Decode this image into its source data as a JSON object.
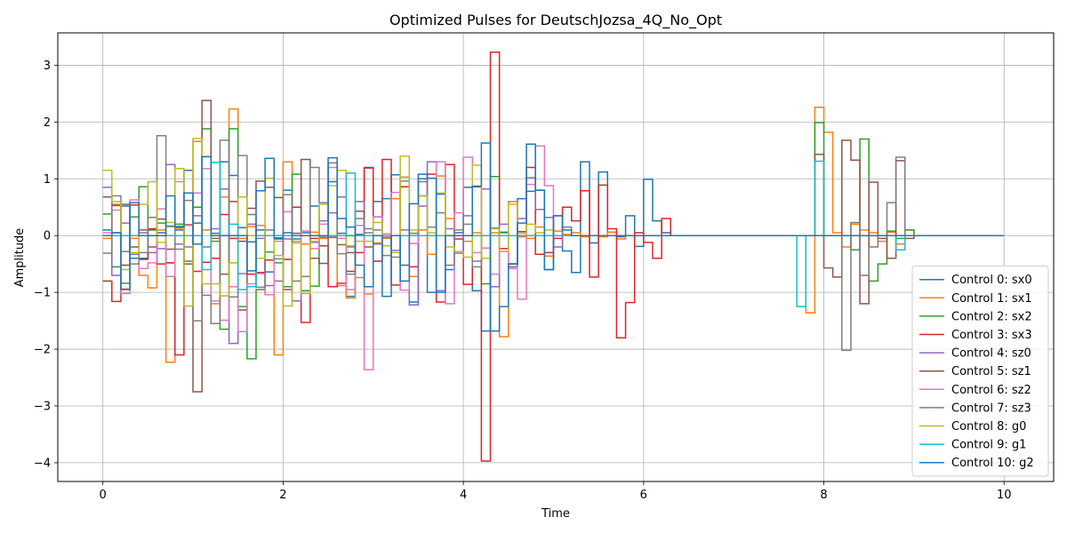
{
  "chart_data": {
    "type": "line",
    "step": true,
    "title": "Optimized Pulses for DeutschJozsa_4Q_No_Opt",
    "xlabel": "Time",
    "ylabel": "Amplitude",
    "xlim": [
      -0.5,
      10.55
    ],
    "ylim": [
      -4.33,
      3.57
    ],
    "xticks": [
      0,
      2,
      4,
      6,
      8,
      10
    ],
    "xtick_labels": [
      "0",
      "2",
      "4",
      "6",
      "8",
      "10"
    ],
    "yticks": [
      -4,
      -3,
      -2,
      -1,
      0,
      1,
      2,
      3
    ],
    "ytick_labels": [
      "−4",
      "−3",
      "−2",
      "−1",
      "0",
      "1",
      "2",
      "3"
    ],
    "grid": true,
    "legend_position": "lower-right",
    "x_start": 0,
    "x_step": 0.1,
    "series": [
      {
        "name": "Control 0: sx0",
        "color": "#1f77b4",
        "values": [
          0.1,
          0.05,
          0.52,
          -0.4,
          -0.4,
          0.1,
          0.05,
          -0.48,
          0.1,
          1.15,
          0.22,
          1.39,
          0.04,
          1.3,
          1.06,
          0.14,
          -0.11,
          0.1,
          -0.64,
          -0.06,
          0.8,
          -0.06,
          0.05,
          0.52,
          -0.03,
          0.95,
          0.04,
          -1.07,
          0.02,
          1.2,
          0.6,
          0.65,
          1.07,
          -0.52,
          -1.17,
          1.0,
          -1.0,
          0.73,
          -0.6,
          0.05,
          0.85,
          -0.97,
          -1.68,
          0.13,
          0.06,
          -0.5,
          0.65,
          0.78,
          0.8,
          -0.6,
          0.35,
          -0.27,
          -0.65,
          1.3,
          -0.13,
          1.12,
          0.06,
          -0.02,
          0.35,
          -0.19,
          0.99,
          0.26,
          0.05,
          0.0,
          0.0,
          0.0,
          0.0,
          0.0,
          0.0,
          0.0,
          0.0,
          0.0,
          0.0,
          0.0,
          0.0,
          0.0,
          0.0,
          0.0,
          0.0,
          0.0,
          0.0,
          0.0,
          0.0,
          0.0,
          0.0,
          0.0,
          0.0,
          0.0,
          0.0,
          0.0,
          0.0,
          0.0,
          0.0,
          0.0,
          0.0,
          0.0,
          0.0,
          0.0,
          0.0,
          0.0
        ]
      },
      {
        "name": "Control 1: sx1",
        "color": "#ff7f0e",
        "values": [
          -0.05,
          0.55,
          -0.94,
          -0.05,
          -0.7,
          -0.92,
          0.1,
          -2.23,
          0.13,
          0.18,
          1.66,
          0.1,
          -1.2,
          0.68,
          2.23,
          -0.05,
          0.16,
          0.18,
          -1.04,
          -2.1,
          1.3,
          0.0,
          -0.15,
          0.06,
          -0.05,
          -0.03,
          -0.88,
          -1.1,
          -0.74,
          -1.03,
          -0.13,
          -0.05,
          0.65,
          1.03,
          -0.72,
          0.1,
          -0.33,
          1.05,
          0.3,
          0.0,
          -0.1,
          0.05,
          0.0,
          0.05,
          -1.78,
          0.6,
          -0.02,
          -0.05,
          0.15,
          -0.36,
          0.08,
          0.02,
          0.05,
          -0.02,
          0.0,
          -0.02,
          0.06,
          -0.06,
          0.0,
          0.0,
          0.0,
          0.0,
          0.0,
          0.0,
          0.0,
          0.0,
          0.0,
          0.0,
          0.0,
          0.0,
          0.0,
          0.0,
          0.0,
          0.0,
          0.0,
          0.0,
          0.0,
          0.0,
          -1.36,
          2.26,
          1.82,
          0.05,
          -0.2,
          0.2,
          0.1,
          0.05,
          -0.1,
          0.06,
          -0.15,
          0.1,
          0.0,
          0.0,
          0.0,
          0.0,
          0.0,
          0.0,
          0.0,
          0.0,
          0.0,
          0.0
        ]
      },
      {
        "name": "Control 2: sx2",
        "color": "#2ca02c",
        "values": [
          0.38,
          -0.55,
          -0.84,
          0.33,
          0.86,
          0.1,
          0.22,
          0.16,
          0.2,
          -0.45,
          0.5,
          1.88,
          -0.1,
          -1.65,
          1.88,
          -1.25,
          -2.17,
          -0.95,
          -0.29,
          -0.48,
          -0.9,
          1.08,
          -0.97,
          -0.89,
          0.0,
          0.0,
          0.0,
          0.0,
          0.0,
          0.0,
          0.0,
          0.0,
          0.0,
          0.0,
          0.0,
          0.0,
          0.0,
          0.0,
          0.0,
          0.0,
          0.0,
          0.0,
          -0.85,
          1.04,
          0.05,
          0.0,
          0.0,
          0.0,
          0.0,
          0.0,
          0.0,
          0.0,
          0.0,
          0.0,
          0.0,
          0.0,
          0.0,
          0.0,
          0.0,
          0.0,
          0.0,
          0.0,
          0.0,
          0.0,
          0.0,
          0.0,
          0.0,
          0.0,
          0.0,
          0.0,
          0.0,
          0.0,
          0.0,
          0.0,
          0.0,
          0.0,
          0.0,
          0.0,
          0.0,
          1.99,
          0.0,
          0.0,
          0.0,
          -0.25,
          1.7,
          -0.8,
          -0.5,
          0.08,
          -0.05,
          0.1,
          0.0,
          0.0,
          0.0,
          0.0,
          0.0,
          0.0,
          0.0,
          0.0,
          0.0,
          0.0
        ]
      },
      {
        "name": "Control 3: sx3",
        "color": "#d62728",
        "values": [
          -0.8,
          -1.16,
          -0.52,
          0.54,
          -0.42,
          0.12,
          -0.5,
          -0.48,
          -2.1,
          0.19,
          -0.63,
          -0.47,
          -0.4,
          0.37,
          -0.05,
          -0.1,
          -0.68,
          -0.65,
          -0.43,
          0.67,
          -0.42,
          0.5,
          -1.53,
          -0.05,
          -0.18,
          -0.9,
          -0.84,
          -0.63,
          -0.3,
          1.19,
          -0.45,
          1.34,
          -0.87,
          0.86,
          -0.55,
          0.7,
          1.08,
          -1.17,
          1.25,
          -0.06,
          -0.86,
          0.86,
          -3.97,
          3.23,
          -0.23,
          -0.5,
          0.07,
          1.2,
          -0.33,
          -0.3,
          -0.05,
          0.5,
          0.26,
          0.79,
          -0.73,
          0.89,
          0.12,
          -1.8,
          -1.18,
          0.05,
          -0.12,
          -0.4,
          0.3,
          0.0,
          0.0,
          0.0,
          0.0,
          0.0,
          0.0,
          0.0,
          0.0,
          0.0,
          0.0,
          0.0,
          0.0,
          0.0,
          0.0,
          0.0,
          0.0,
          0.0,
          0.0,
          0.0,
          0.0,
          0.0,
          0.0,
          0.0,
          0.0,
          0.0,
          0.0,
          0.0,
          0.0,
          0.0,
          0.0,
          0.0,
          0.0,
          0.0,
          0.0,
          0.0,
          0.0,
          0.0
        ]
      },
      {
        "name": "Control 4: sz0",
        "color": "#9467bd",
        "values": [
          0.85,
          -0.7,
          0.22,
          -0.33,
          0.05,
          -0.3,
          -0.23,
          1.25,
          -0.15,
          -0.2,
          0.35,
          -0.2,
          0.12,
          0.82,
          -1.9,
          -0.67,
          0.2,
          -0.05,
          -0.88,
          -0.8,
          -0.06,
          -1.15,
          0.08,
          -0.12,
          0.26,
          0.4,
          0.68,
          -0.2,
          0.6,
          0.12,
          -0.15,
          -0.35,
          -0.26,
          0.1,
          -1.22,
          0.52,
          1.3,
          -0.97,
          0.12,
          -0.31,
          0.35,
          -0.45,
          0.82,
          -0.9,
          0.2,
          -0.55,
          0.3,
          1.02,
          0.46,
          0.32,
          -0.2,
          0.15,
          0.0,
          0.0,
          0.0,
          0.0,
          0.0,
          0.0,
          0.0,
          0.0,
          0.0,
          0.0,
          0.0,
          0.0,
          0.0,
          0.0,
          0.0,
          0.0,
          0.0,
          0.0,
          0.0,
          0.0,
          0.0,
          0.0,
          0.0,
          0.0,
          0.0,
          0.0,
          0.0,
          0.0,
          0.0,
          0.0,
          0.0,
          0.0,
          0.0,
          0.0,
          0.0,
          0.0,
          0.0,
          0.0,
          0.0,
          0.0,
          0.0,
          0.0,
          0.0,
          0.0,
          0.0,
          0.0,
          0.0,
          0.0
        ]
      },
      {
        "name": "Control 5: sz1",
        "color": "#8c564b",
        "values": [
          0.68,
          0.53,
          0.55,
          -0.2,
          0.1,
          -0.2,
          0.29,
          -0.24,
          0.15,
          -0.5,
          -2.75,
          2.38,
          -0.05,
          -0.68,
          0.6,
          -1.31,
          0.48,
          0.96,
          0.85,
          -0.04,
          -0.95,
          0.04,
          1.34,
          -0.4,
          -0.49,
          -0.03,
          -0.16,
          -0.3,
          0.43,
          -0.2,
          0.33,
          0.0,
          0.0,
          0.0,
          0.0,
          0.0,
          0.0,
          0.0,
          0.0,
          0.0,
          0.0,
          0.0,
          0.0,
          0.0,
          0.0,
          0.0,
          0.0,
          0.0,
          0.0,
          0.0,
          0.0,
          0.0,
          0.0,
          0.0,
          0.0,
          0.0,
          0.0,
          0.0,
          0.0,
          0.0,
          0.0,
          0.0,
          0.0,
          0.0,
          0.0,
          0.0,
          0.0,
          0.0,
          0.0,
          0.0,
          0.0,
          0.0,
          0.0,
          0.0,
          0.0,
          0.0,
          0.0,
          0.0,
          0.0,
          1.43,
          -0.57,
          -0.73,
          1.68,
          1.33,
          -1.2,
          0.94,
          -0.05,
          -0.4,
          1.32,
          -0.05,
          0.0,
          0.0,
          0.0,
          0.0,
          0.0,
          0.0,
          0.0,
          0.0,
          0.0,
          0.0
        ]
      },
      {
        "name": "Control 6: sz2",
        "color": "#e377c2",
        "values": [
          0.05,
          0.45,
          -1.02,
          0.63,
          -0.58,
          -0.48,
          0.47,
          -0.72,
          0.95,
          0.18,
          0.75,
          1.18,
          -1.15,
          -1.49,
          -0.9,
          -1.69,
          -0.85,
          -0.67,
          -1.04,
          -0.1,
          0.42,
          -0.1,
          0.08,
          -0.23,
          0.2,
          1.2,
          -0.05,
          -0.95,
          0.18,
          -2.36,
          0.33,
          0.03,
          0.76,
          -0.96,
          -0.14,
          0.0,
          0.0,
          1.3,
          -1.2,
          0.4,
          1.38,
          -0.3,
          -0.22,
          -0.68,
          -0.28,
          -0.58,
          -1.12,
          0.9,
          1.58,
          0.88,
          0.0,
          0.0,
          0.0,
          0.0,
          0.0,
          0.0,
          0.0,
          0.0,
          0.0,
          0.0,
          0.0,
          0.0,
          0.0,
          0.0,
          0.0,
          0.0,
          0.0,
          0.0,
          0.0,
          0.0,
          0.0,
          0.0,
          0.0,
          0.0,
          0.0,
          0.0,
          0.0,
          0.0,
          0.0,
          0.0,
          0.0,
          0.0,
          0.0,
          0.0,
          0.0,
          0.0,
          0.0,
          0.0,
          0.0,
          0.0,
          0.0,
          0.0,
          0.0,
          0.0,
          0.0,
          0.0,
          0.0,
          0.0,
          0.0,
          0.0
        ]
      },
      {
        "name": "Control 7: sz3",
        "color": "#7f7f7f",
        "values": [
          -0.31,
          0.7,
          -0.28,
          -0.5,
          -0.3,
          0.32,
          1.76,
          0.17,
          -0.24,
          0.62,
          -1.5,
          -1.05,
          -1.55,
          1.68,
          -1.08,
          1.41,
          0.37,
          -0.91,
          0.1,
          -0.41,
          0.72,
          -0.8,
          -0.72,
          1.2,
          0.58,
          1.28,
          -0.32,
          -0.68,
          0.3,
          0.05,
          0.1,
          -0.03,
          -0.38,
          0.96,
          0.04,
          0.95,
          0.15,
          0.4,
          -0.52,
          0.1,
          0.2,
          -0.55,
          0.0,
          0.0,
          0.0,
          0.0,
          0.0,
          0.0,
          0.0,
          0.0,
          0.0,
          0.0,
          0.0,
          0.0,
          0.0,
          0.0,
          0.0,
          0.0,
          0.0,
          0.0,
          0.0,
          0.0,
          0.0,
          0.0,
          0.0,
          0.0,
          0.0,
          0.0,
          0.0,
          0.0,
          0.0,
          0.0,
          0.0,
          0.0,
          0.0,
          0.0,
          0.0,
          0.0,
          0.0,
          0.0,
          0.0,
          0.0,
          -2.02,
          0.23,
          -0.7,
          -0.2,
          0.0,
          0.58,
          1.38,
          0.0,
          0.0,
          0.0,
          0.0,
          0.0,
          0.0,
          0.0,
          0.0,
          0.0,
          0.0,
          0.0
        ]
      },
      {
        "name": "Control 8: g0",
        "color": "#bcbd22",
        "values": [
          1.15,
          0.6,
          -0.6,
          -0.3,
          0.55,
          0.95,
          -0.12,
          0.23,
          1.18,
          -1.24,
          1.71,
          -0.85,
          -0.85,
          -1.06,
          -0.48,
          0.68,
          0.0,
          -0.4,
          1.01,
          -0.35,
          -1.24,
          -0.13,
          -1.02,
          -0.1,
          0.55,
          0.88,
          1.15,
          -0.18,
          -0.1,
          -0.1,
          0.23,
          -0.18,
          -0.3,
          1.4,
          0.1,
          0.7,
          0.05,
          0.75,
          -0.2,
          -0.28,
          -0.38,
          1.24,
          -0.4,
          0.12,
          -0.28,
          0.55,
          0.04,
          0.2,
          0.05,
          0.1,
          0.0,
          0.0,
          0.0,
          0.0,
          0.0,
          0.0,
          0.0,
          0.0,
          0.0,
          0.0,
          0.0,
          0.0,
          0.0,
          0.0,
          0.0,
          0.0,
          0.0,
          0.0,
          0.0,
          0.0,
          0.0,
          0.0,
          0.0,
          0.0,
          0.0,
          0.0,
          0.0,
          0.0,
          0.0,
          0.0,
          0.0,
          0.0,
          0.0,
          0.0,
          0.0,
          0.0,
          0.0,
          0.0,
          0.0,
          0.0,
          0.0,
          0.0,
          0.0,
          0.0,
          0.0,
          0.0,
          0.0,
          0.0,
          0.0,
          0.0
        ]
      },
      {
        "name": "Control 9: g1",
        "color": "#17becf",
        "values": [
          0.0,
          0.0,
          0.0,
          0.0,
          0.0,
          0.0,
          0.0,
          0.0,
          0.0,
          0.0,
          0.0,
          -0.6,
          1.29,
          0.0,
          0.2,
          -0.95,
          -0.9,
          0.0,
          0.0,
          0.0,
          0.0,
          0.0,
          0.0,
          0.0,
          0.0,
          0.0,
          0.0,
          1.1,
          0.0,
          0.0,
          0.0,
          0.0,
          0.0,
          0.0,
          0.0,
          0.0,
          0.0,
          0.0,
          0.0,
          0.0,
          0.0,
          0.0,
          0.0,
          0.0,
          0.0,
          0.0,
          0.0,
          0.0,
          0.0,
          0.0,
          0.0,
          0.0,
          0.0,
          0.0,
          0.0,
          0.0,
          0.0,
          0.0,
          0.0,
          0.0,
          0.0,
          0.0,
          0.0,
          0.0,
          0.0,
          0.0,
          0.0,
          0.0,
          0.0,
          0.0,
          0.0,
          0.0,
          0.0,
          0.0,
          0.0,
          0.0,
          0.0,
          -1.25,
          0.0,
          1.31,
          0.0,
          0.0,
          0.0,
          0.0,
          0.0,
          0.0,
          0.0,
          0.0,
          -0.25,
          0.0,
          0.0,
          0.0,
          0.0,
          0.0,
          0.0,
          0.0,
          0.0,
          0.0,
          0.0,
          0.0
        ]
      },
      {
        "name": "Control 10: g2",
        "color": "#1f77b4",
        "values": [
          0.0,
          0.05,
          -0.95,
          0.58,
          0.0,
          0.0,
          0.0,
          0.7,
          0.16,
          0.75,
          -0.15,
          1.39,
          0.0,
          0.0,
          0.0,
          0.0,
          -0.62,
          0.79,
          1.36,
          -0.05,
          0.05,
          0.0,
          0.0,
          0.0,
          0.0,
          1.37,
          0.3,
          0.15,
          -0.52,
          -0.9,
          0.0,
          -1.07,
          0.0,
          -0.8,
          0.56,
          1.08,
          1.01,
          -1.0,
          0.0,
          0.0,
          0.0,
          0.87,
          1.63,
          -1.68,
          -1.25,
          -0.5,
          0.22,
          1.61,
          0.8,
          -0.6,
          0.35,
          0.1,
          0.0,
          0.0,
          0.0,
          0.0,
          0.0,
          0.0,
          0.0,
          0.0,
          0.0,
          0.0,
          0.0,
          0.0,
          0.0,
          0.0,
          0.0,
          0.0,
          0.0,
          0.0,
          0.0,
          0.0,
          0.0,
          0.0,
          0.0,
          0.0,
          0.0,
          0.0,
          0.0,
          0.0,
          0.0,
          0.0,
          0.0,
          0.0,
          0.0,
          0.0,
          0.0,
          0.0,
          0.0,
          0.0,
          0.0,
          0.0,
          0.0,
          0.0,
          0.0,
          0.0,
          0.0,
          0.0,
          0.0,
          0.0
        ]
      }
    ]
  }
}
